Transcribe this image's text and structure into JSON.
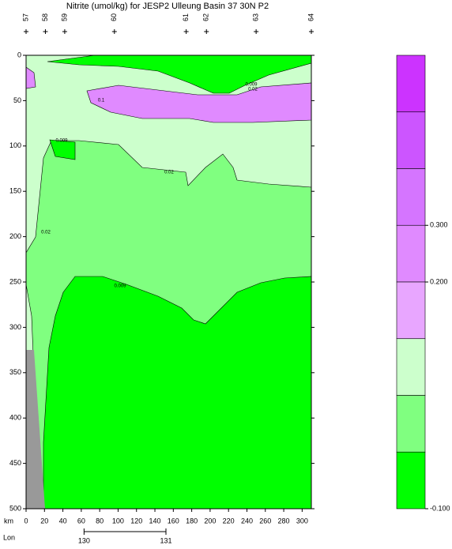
{
  "chart_data": {
    "type": "section",
    "title": "Nitrite (umol/kg) for JESP2 Ulleung Basin 37 30N P2",
    "x_label": "km",
    "lon_label": "Lon",
    "xlim": [
      0,
      310
    ],
    "xticks": [
      0,
      20,
      40,
      60,
      80,
      100,
      120,
      140,
      160,
      180,
      200,
      220,
      240,
      260,
      280,
      300
    ],
    "ylim": [
      0,
      500
    ],
    "yticks": [
      0,
      50,
      100,
      150,
      200,
      250,
      300,
      350,
      400,
      450,
      500
    ],
    "lon_ticks": [
      {
        "km": 63,
        "label": "130"
      },
      {
        "km": 152,
        "label": "131"
      }
    ],
    "stations": [
      {
        "km": 0,
        "label": "57"
      },
      {
        "km": 21,
        "label": "58"
      },
      {
        "km": 42,
        "label": "59"
      },
      {
        "km": 96,
        "label": "60"
      },
      {
        "km": 174,
        "label": "61"
      },
      {
        "km": 196,
        "label": "62"
      },
      {
        "km": 250,
        "label": "63"
      },
      {
        "km": 310,
        "label": "64"
      }
    ],
    "contour_labels": [
      "0.1",
      "0.009",
      "0.02",
      "0.02",
      "0.009",
      "0.009",
      "0.02"
    ],
    "colorbar": {
      "levels": [
        0.6,
        0.5,
        0.4,
        0.3,
        0.2,
        0.1,
        0.02,
        0.009,
        -0.1
      ],
      "colors": [
        "#cc33ff",
        "#cc55ff",
        "#d575ff",
        "#e08aff",
        "#e8a6ff",
        "#ccffcc",
        "#80ff80",
        "#00ff00"
      ],
      "ticks": [
        {
          "value": 0.3,
          "label": "0.300"
        },
        {
          "value": 0.2,
          "label": "0.200"
        },
        {
          "value": -0.1,
          "label": "-0.100"
        }
      ]
    }
  }
}
